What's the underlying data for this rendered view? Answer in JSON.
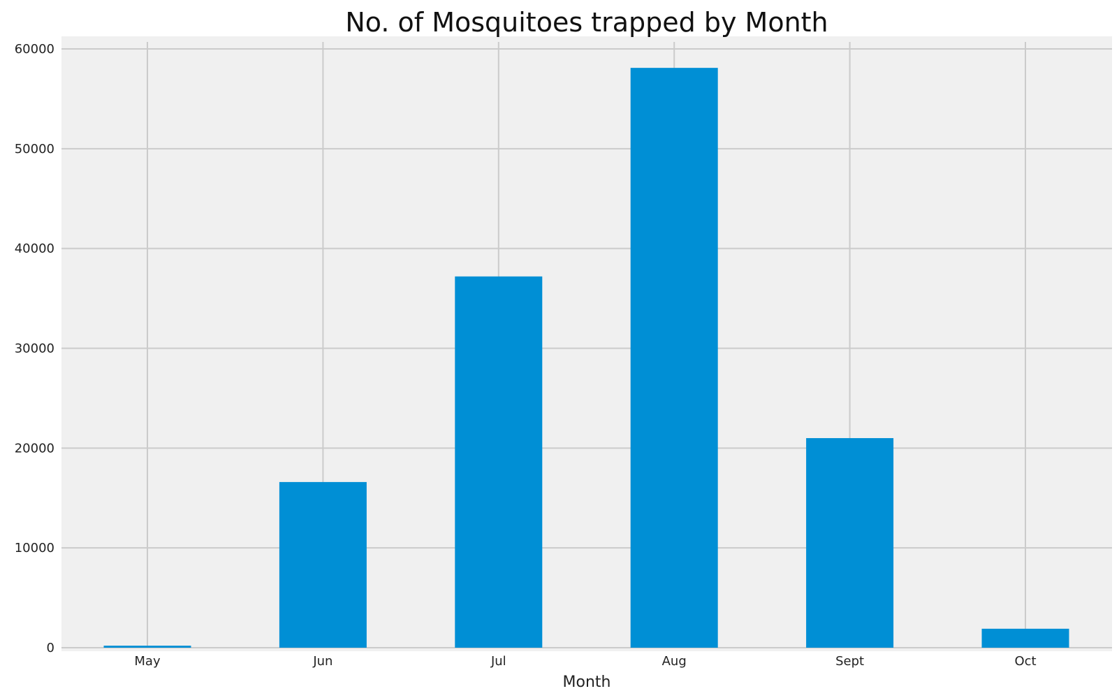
{
  "chart_data": {
    "type": "bar",
    "title": "No. of Mosquitoes trapped by Month",
    "xlabel": "Month",
    "ylabel": "",
    "categories": [
      "May",
      "Jun",
      "Jul",
      "Aug",
      "Sept",
      "Oct"
    ],
    "values": [
      200,
      16600,
      37200,
      58100,
      21000,
      1900
    ],
    "ylim": [
      0,
      61000
    ],
    "yticks": [
      "0",
      "10000",
      "20000",
      "30000",
      "40000",
      "50000",
      "60000"
    ],
    "grid": true,
    "legend": "none",
    "colors": {
      "bar": "#008fd5",
      "background": "#f0f0f0",
      "grid": "#cbcbcb"
    }
  }
}
